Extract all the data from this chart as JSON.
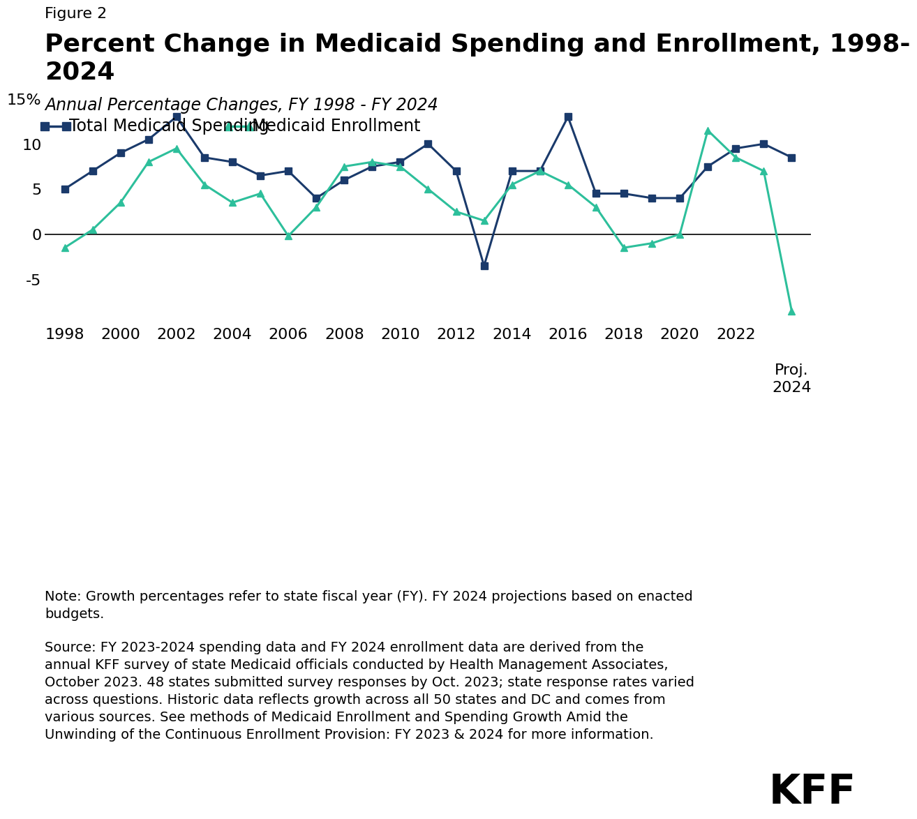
{
  "title_prefix": "Figure 2",
  "title": "Percent Change in Medicaid Spending and Enrollment, 1998-\n2024",
  "subtitle": "Annual Percentage Changes, FY 1998 - FY 2024",
  "spending_label": "Total Medicaid Spending",
  "enrollment_label": "Medicaid Enrollment",
  "spending_color": "#1a3a6b",
  "enrollment_color": "#2dbf9b",
  "years": [
    1998,
    1999,
    2000,
    2001,
    2002,
    2003,
    2004,
    2005,
    2006,
    2007,
    2008,
    2009,
    2010,
    2011,
    2012,
    2013,
    2014,
    2015,
    2016,
    2017,
    2018,
    2019,
    2020,
    2021,
    2022,
    2023,
    2024
  ],
  "spending": [
    5.0,
    7.0,
    9.0,
    10.5,
    13.0,
    8.5,
    8.0,
    6.5,
    7.0,
    4.0,
    6.0,
    7.5,
    8.0,
    10.0,
    7.0,
    -3.5,
    7.0,
    7.0,
    13.0,
    4.5,
    4.5,
    4.0,
    4.0,
    7.5,
    9.5,
    10.0,
    8.5
  ],
  "enrollment": [
    -1.5,
    0.5,
    3.5,
    8.0,
    9.5,
    5.5,
    3.5,
    4.5,
    -0.2,
    3.0,
    7.5,
    8.0,
    7.5,
    5.0,
    2.5,
    1.5,
    5.5,
    7.0,
    5.5,
    3.0,
    -1.5,
    -1.0,
    0.0,
    11.5,
    8.5,
    7.0,
    -8.5
  ],
  "ylim": [
    -10,
    17
  ],
  "yticks": [
    -5,
    0,
    5,
    10,
    15
  ],
  "ytick_labels": [
    "-5",
    "0",
    "5",
    "10",
    "15%"
  ],
  "xlim": [
    1997.3,
    2024.7
  ],
  "xticks": [
    1998,
    2000,
    2002,
    2004,
    2006,
    2008,
    2010,
    2012,
    2014,
    2016,
    2018,
    2020,
    2022,
    2024
  ],
  "proj_label": "Proj.",
  "note_text": "Note: Growth percentages refer to state fiscal year (FY). FY 2024 projections based on enacted\nbudgets.",
  "source_text": "Source: FY 2023-2024 spending data and FY 2024 enrollment data are derived from the\nannual KFF survey of state Medicaid officials conducted by Health Management Associates,\nOctober 2023. 48 states submitted survey responses by Oct. 2023; state response rates varied\nacross questions. Historic data reflects growth across all 50 states and DC and comes from\nvarious sources. See methods of Medicaid Enrollment and Spending Growth Amid the\nUnwinding of the Continuous Enrollment Provision: FY 2023 & 2024 for more information.",
  "kff_label": "KFF",
  "background_color": "#ffffff",
  "line_width": 2.2,
  "marker_size": 7
}
